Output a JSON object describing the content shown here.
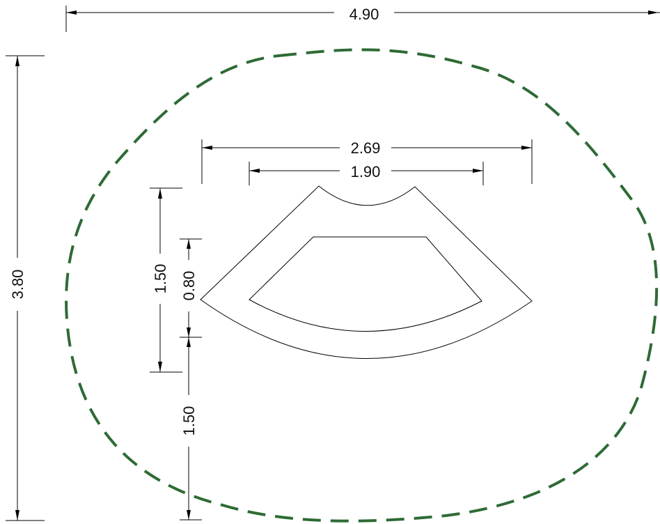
{
  "dimensions": {
    "overall_width": "4.90",
    "overall_height": "3.80",
    "outer_arc_width": "2.69",
    "inner_arc_width": "1.90",
    "platform_depth": "1.50",
    "mat_depth": "0.80",
    "front_clearance": "1.50"
  },
  "colors": {
    "safety_zone": "#2e6b35",
    "line": "#000000",
    "background": "#ffffff"
  }
}
